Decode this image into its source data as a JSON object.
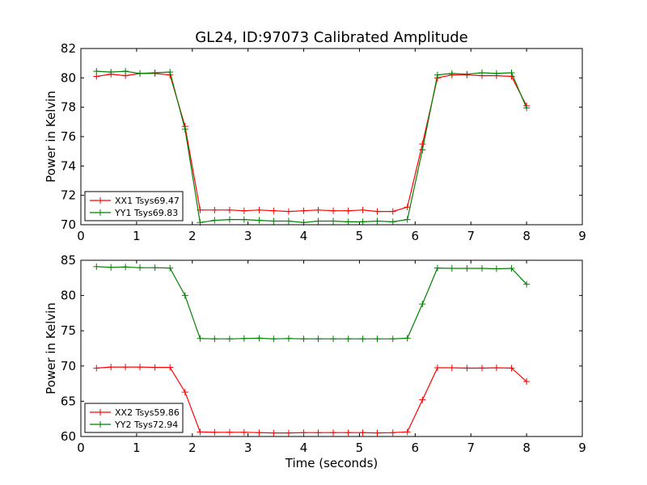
{
  "chart_data": {
    "title": "GL24, ID:97073 Calibrated Amplitude",
    "xlabel": "Time (seconds)",
    "panels": [
      {
        "type": "line",
        "ylabel": "Power in Kelvin",
        "xlim": [
          0,
          9
        ],
        "ylim": [
          70,
          82
        ],
        "xticks": [
          0,
          1,
          2,
          3,
          4,
          5,
          6,
          7,
          8,
          9
        ],
        "yticks": [
          70,
          72,
          74,
          76,
          78,
          80,
          82
        ],
        "legend_position": "lower-left",
        "x": [
          0.28,
          0.54,
          0.8,
          1.06,
          1.33,
          1.6,
          1.87,
          2.14,
          2.4,
          2.67,
          2.93,
          3.2,
          3.46,
          3.73,
          4.0,
          4.26,
          4.53,
          4.8,
          5.06,
          5.32,
          5.6,
          5.86,
          6.13,
          6.4,
          6.66,
          6.93,
          7.2,
          7.46,
          7.73,
          8.0
        ],
        "series": [
          {
            "name": "XX1 Tsys69.47",
            "color": "#ff0000",
            "values": [
              80.1,
              80.25,
              80.15,
              80.3,
              80.3,
              80.2,
              76.7,
              71.0,
              71.0,
              71.0,
              70.95,
              71.0,
              70.95,
              70.9,
              70.95,
              71.0,
              70.95,
              70.95,
              71.0,
              70.9,
              70.9,
              71.2,
              75.5,
              80.0,
              80.2,
              80.2,
              80.15,
              80.15,
              80.1,
              78.1
            ]
          },
          {
            "name": "YY1 Tsys69.83",
            "color": "#008000",
            "values": [
              80.45,
              80.4,
              80.45,
              80.3,
              80.35,
              80.4,
              76.5,
              70.15,
              70.3,
              70.35,
              70.35,
              70.3,
              70.25,
              70.25,
              70.15,
              70.25,
              70.25,
              70.2,
              70.2,
              70.25,
              70.2,
              70.35,
              75.1,
              80.2,
              80.3,
              80.25,
              80.35,
              80.3,
              80.35,
              77.95
            ]
          }
        ]
      },
      {
        "type": "line",
        "ylabel": "Power in Kelvin",
        "xlim": [
          0,
          9
        ],
        "ylim": [
          60,
          85
        ],
        "xticks": [
          0,
          1,
          2,
          3,
          4,
          5,
          6,
          7,
          8,
          9
        ],
        "yticks": [
          60,
          65,
          70,
          75,
          80,
          85
        ],
        "legend_position": "lower-left",
        "x": [
          0.28,
          0.54,
          0.8,
          1.06,
          1.33,
          1.6,
          1.87,
          2.14,
          2.4,
          2.67,
          2.93,
          3.2,
          3.46,
          3.73,
          4.0,
          4.26,
          4.53,
          4.8,
          5.06,
          5.32,
          5.6,
          5.86,
          6.13,
          6.4,
          6.66,
          6.93,
          7.2,
          7.46,
          7.73,
          8.0
        ],
        "series": [
          {
            "name": "XX2 Tsys59.86",
            "color": "#ff0000",
            "values": [
              69.7,
              69.85,
              69.85,
              69.85,
              69.8,
              69.8,
              66.3,
              60.65,
              60.6,
              60.6,
              60.6,
              60.55,
              60.5,
              60.5,
              60.55,
              60.55,
              60.55,
              60.55,
              60.55,
              60.5,
              60.55,
              60.65,
              65.2,
              69.75,
              69.75,
              69.7,
              69.7,
              69.75,
              69.7,
              67.8
            ]
          },
          {
            "name": "YY2 Tsys72.94",
            "color": "#008000",
            "values": [
              84.1,
              84.0,
              84.05,
              83.95,
              83.95,
              83.9,
              80.0,
              73.9,
              73.85,
              73.85,
              73.9,
              73.95,
              73.85,
              73.9,
              73.85,
              73.85,
              73.85,
              73.85,
              73.85,
              73.85,
              73.85,
              73.95,
              78.8,
              83.9,
              83.85,
              83.85,
              83.85,
              83.8,
              83.85,
              81.6
            ]
          }
        ]
      }
    ]
  }
}
